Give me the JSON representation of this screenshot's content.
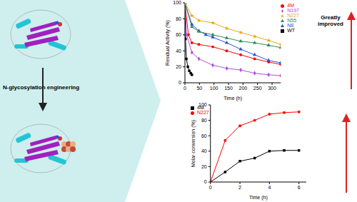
{
  "header": {
    "label": "N-glycosylation engineering"
  },
  "chart_data": [
    {
      "type": "line",
      "x_label": "Time (h)",
      "y_label": "Residual Activity (%)",
      "annotation": "Greatly improved",
      "xlim": [
        0,
        330
      ],
      "xticks": [
        0,
        50,
        100,
        150,
        200,
        250,
        300
      ],
      "ylim": [
        0,
        100
      ],
      "yticks": [
        0,
        20,
        40,
        60,
        80,
        100
      ],
      "legend": "upper right",
      "series": [
        {
          "name": "WT",
          "color": "#000000",
          "marker": "square",
          "x": [
            0,
            2,
            5,
            10,
            15,
            20,
            24
          ],
          "values": [
            100,
            55,
            30,
            20,
            15,
            12,
            10
          ]
        },
        {
          "name": "4M",
          "color": "#ff0000",
          "marker": "circle",
          "x": [
            0,
            12,
            24,
            48,
            96,
            144,
            192,
            240,
            288,
            330
          ],
          "values": [
            100,
            60,
            50,
            48,
            45,
            40,
            35,
            30,
            26,
            23
          ]
        },
        {
          "name": "N8",
          "color": "#2f4fd8",
          "marker": "triangle",
          "x": [
            0,
            24,
            48,
            72,
            96,
            144,
            192,
            240,
            288,
            330
          ],
          "values": [
            100,
            73,
            65,
            60,
            57,
            50,
            42,
            35,
            28,
            25
          ]
        },
        {
          "name": "N55",
          "color": "#2e8b57",
          "marker": "triangle",
          "x": [
            0,
            24,
            48,
            96,
            144,
            192,
            240,
            288,
            330
          ],
          "values": [
            100,
            70,
            64,
            60,
            56,
            52,
            50,
            47,
            44
          ]
        },
        {
          "name": "N197",
          "color": "#b050e0",
          "marker": "diamond",
          "x": [
            0,
            6,
            24,
            48,
            96,
            144,
            192,
            240,
            288,
            330
          ],
          "values": [
            100,
            60,
            38,
            30,
            22,
            18,
            16,
            12,
            10,
            9
          ]
        },
        {
          "name": "N227",
          "color": "#e6a817",
          "marker": "star",
          "x": [
            0,
            24,
            48,
            96,
            144,
            192,
            240,
            288,
            330
          ],
          "values": [
            100,
            84,
            78,
            75,
            68,
            63,
            58,
            53,
            48
          ]
        }
      ]
    },
    {
      "type": "line",
      "x_label": "Time (h)",
      "y_label": "Molar conversion (%)",
      "xlim": [
        0,
        6.5
      ],
      "xticks": [
        0,
        2,
        4,
        6
      ],
      "ylim": [
        0,
        100
      ],
      "yticks": [
        0,
        20,
        40,
        60,
        80,
        100
      ],
      "legend": "upper left",
      "series": [
        {
          "name": "4M",
          "color": "#000000",
          "marker": "square",
          "x": [
            0,
            1,
            2,
            3,
            4,
            5,
            6
          ],
          "values": [
            0,
            13,
            27,
            31,
            40,
            41,
            41
          ]
        },
        {
          "name": "N227",
          "color": "#ff0000",
          "marker": "circle",
          "x": [
            0,
            1,
            2,
            3,
            4,
            5,
            6
          ],
          "values": [
            0,
            54,
            73,
            80,
            88,
            90,
            91
          ]
        }
      ]
    }
  ]
}
